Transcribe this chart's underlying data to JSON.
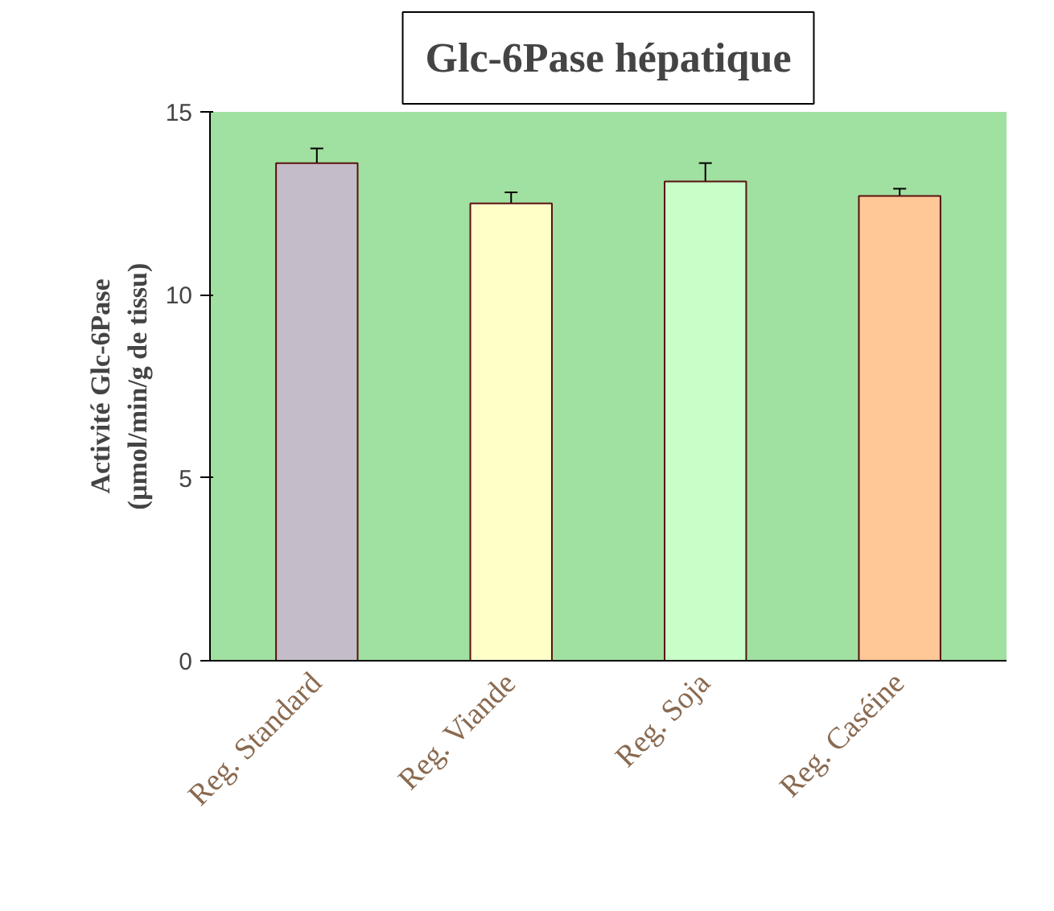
{
  "chart_data": {
    "type": "bar",
    "title": "Glc-6Pase hépatique",
    "ylabel": "Activité Glc-6Pase\n(µmol/min/g de tissu)",
    "categories": [
      "Reg. Standard",
      "Reg. Viande",
      "Reg. Soja",
      "Reg. Caséine"
    ],
    "values": [
      13.6,
      12.5,
      13.1,
      12.7
    ],
    "errors": [
      0.4,
      0.3,
      0.5,
      0.2
    ],
    "colors": [
      "#c4bcc8",
      "#ffffc8",
      "#c8ffc8",
      "#ffc896"
    ],
    "ylim": [
      0,
      15
    ],
    "yticks": [
      0,
      5,
      10,
      15
    ],
    "grid": false
  }
}
